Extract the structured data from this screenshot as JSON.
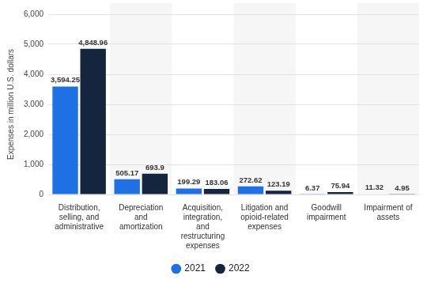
{
  "chart_data": {
    "type": "bar",
    "y_label": "Expenses in million U.S. dollars",
    "categories": [
      "Distribution, selling, and administrative",
      "Depreciation and amortization",
      "Acquisition, integration, and restructuring expenses",
      "Litigation and opioid-related expenses",
      "Goodwill impairment",
      "Impairment of assets"
    ],
    "series": [
      {
        "name": "2021",
        "color": "#1f6fe5",
        "values": [
          3594.25,
          505.17,
          199.29,
          272.62,
          6.37,
          11.32
        ],
        "value_labels": [
          "3,594.25",
          "505.17",
          "199.29",
          "272.62",
          "6.37",
          "11.32"
        ]
      },
      {
        "name": "2022",
        "color": "#14253d",
        "values": [
          4848.96,
          693.9,
          183.06,
          123.19,
          75.94,
          4.95
        ],
        "value_labels": [
          "4,848.96",
          "693.9",
          "183.06",
          "123.19",
          "75.94",
          "4.95"
        ]
      }
    ],
    "ylim": [
      0,
      6000
    ],
    "yticks": [
      0,
      {
        "value": 1000,
        "label": "1,000"
      },
      {
        "value": 2000,
        "label": "2,000"
      },
      {
        "value": 3000,
        "label": "3,000"
      },
      {
        "value": 4000,
        "label": "4,000"
      },
      {
        "value": 5000,
        "label": "5,000"
      },
      {
        "value": 6000,
        "label": "6,000"
      }
    ],
    "grid": true,
    "legend": "bottom",
    "data_labels": true
  }
}
